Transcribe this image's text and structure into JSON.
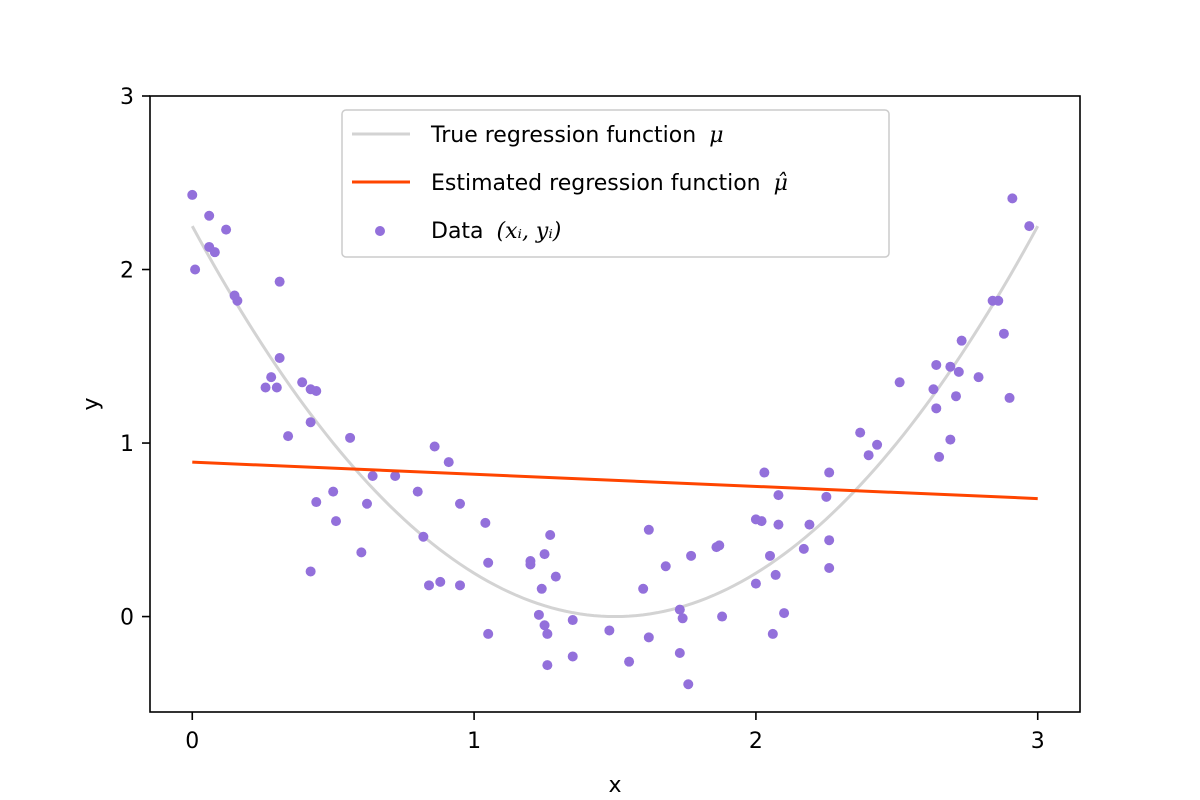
{
  "chart_data": {
    "type": "scatter",
    "xlabel": "x",
    "ylabel": "y",
    "xlim": [
      -0.15,
      3.15
    ],
    "ylim": [
      -0.55,
      3.0
    ],
    "xticks": [
      0,
      1,
      2,
      3
    ],
    "yticks": [
      0,
      1,
      2,
      3
    ],
    "grid": false,
    "legend_position": "top-center",
    "legend": {
      "true_label": "True regression function",
      "true_symbol": "μ",
      "est_label": "Estimated regression function",
      "est_symbol": "μ̂",
      "data_label": "Data",
      "data_symbol": "(xᵢ, yᵢ)"
    },
    "colors": {
      "true_line": "#d3d3d3",
      "estimated_line": "#ff4500",
      "data_points": "#9370db"
    },
    "true_function": {
      "form": "(x - 1.5)^2",
      "x_range": [
        0,
        3
      ]
    },
    "estimated_line": {
      "x": [
        0,
        3
      ],
      "y": [
        0.89,
        0.68
      ]
    },
    "points": [
      [
        0.0,
        2.43
      ],
      [
        0.01,
        2.0
      ],
      [
        0.06,
        2.31
      ],
      [
        0.06,
        2.13
      ],
      [
        0.08,
        2.1
      ],
      [
        0.12,
        2.23
      ],
      [
        0.15,
        1.85
      ],
      [
        0.16,
        1.82
      ],
      [
        0.26,
        1.32
      ],
      [
        0.28,
        1.38
      ],
      [
        0.3,
        1.32
      ],
      [
        0.31,
        1.93
      ],
      [
        0.31,
        1.49
      ],
      [
        0.34,
        1.04
      ],
      [
        0.39,
        1.35
      ],
      [
        0.42,
        1.31
      ],
      [
        0.42,
        1.12
      ],
      [
        0.42,
        0.26
      ],
      [
        0.44,
        1.3
      ],
      [
        0.44,
        0.66
      ],
      [
        0.5,
        0.72
      ],
      [
        0.51,
        0.55
      ],
      [
        0.56,
        1.03
      ],
      [
        0.6,
        0.37
      ],
      [
        0.62,
        0.65
      ],
      [
        0.64,
        0.81
      ],
      [
        0.72,
        0.81
      ],
      [
        0.8,
        0.72
      ],
      [
        0.82,
        0.46
      ],
      [
        0.84,
        0.18
      ],
      [
        0.86,
        0.98
      ],
      [
        0.88,
        0.2
      ],
      [
        0.91,
        0.89
      ],
      [
        0.95,
        0.65
      ],
      [
        0.95,
        0.18
      ],
      [
        1.04,
        0.54
      ],
      [
        1.05,
        0.31
      ],
      [
        1.05,
        -0.1
      ],
      [
        1.2,
        0.32
      ],
      [
        1.2,
        0.3
      ],
      [
        1.23,
        0.01
      ],
      [
        1.24,
        0.16
      ],
      [
        1.25,
        -0.05
      ],
      [
        1.25,
        0.36
      ],
      [
        1.26,
        -0.28
      ],
      [
        1.26,
        -0.1
      ],
      [
        1.27,
        0.47
      ],
      [
        1.29,
        0.23
      ],
      [
        1.35,
        -0.23
      ],
      [
        1.35,
        -0.02
      ],
      [
        1.48,
        -0.08
      ],
      [
        1.55,
        -0.26
      ],
      [
        1.6,
        0.16
      ],
      [
        1.62,
        0.5
      ],
      [
        1.62,
        -0.12
      ],
      [
        1.68,
        0.29
      ],
      [
        1.73,
        -0.21
      ],
      [
        1.73,
        0.04
      ],
      [
        1.74,
        -0.01
      ],
      [
        1.76,
        -0.39
      ],
      [
        1.77,
        0.35
      ],
      [
        1.86,
        0.4
      ],
      [
        1.87,
        0.41
      ],
      [
        1.88,
        0.0
      ],
      [
        2.0,
        0.56
      ],
      [
        2.0,
        0.19
      ],
      [
        2.02,
        0.55
      ],
      [
        2.03,
        0.83
      ],
      [
        2.05,
        0.35
      ],
      [
        2.06,
        -0.1
      ],
      [
        2.07,
        0.24
      ],
      [
        2.08,
        0.53
      ],
      [
        2.08,
        0.7
      ],
      [
        2.1,
        0.02
      ],
      [
        2.17,
        0.39
      ],
      [
        2.19,
        0.53
      ],
      [
        2.25,
        0.69
      ],
      [
        2.26,
        0.83
      ],
      [
        2.26,
        0.44
      ],
      [
        2.26,
        0.28
      ],
      [
        2.37,
        1.06
      ],
      [
        2.4,
        0.93
      ],
      [
        2.43,
        0.99
      ],
      [
        2.51,
        1.35
      ],
      [
        2.63,
        1.31
      ],
      [
        2.64,
        1.45
      ],
      [
        2.64,
        1.2
      ],
      [
        2.65,
        0.92
      ],
      [
        2.69,
        1.02
      ],
      [
        2.69,
        1.44
      ],
      [
        2.71,
        1.27
      ],
      [
        2.72,
        1.41
      ],
      [
        2.73,
        1.59
      ],
      [
        2.79,
        1.38
      ],
      [
        2.84,
        1.82
      ],
      [
        2.86,
        1.82
      ],
      [
        2.88,
        1.63
      ],
      [
        2.9,
        1.26
      ],
      [
        2.91,
        2.41
      ],
      [
        2.97,
        2.25
      ]
    ]
  }
}
